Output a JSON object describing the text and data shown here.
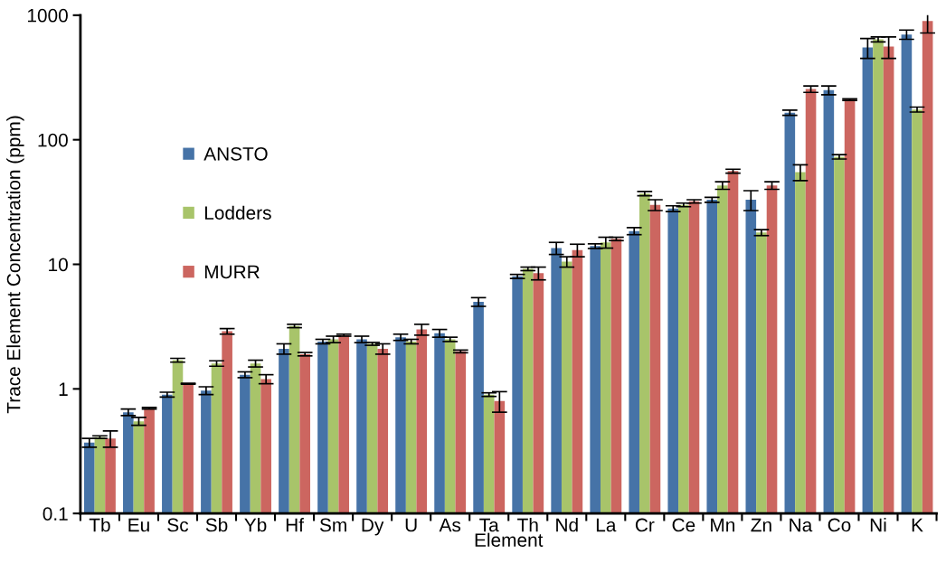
{
  "chart_data": {
    "type": "bar",
    "xlabel": "Element",
    "ylabel": "Trace Element Concentration (ppm)",
    "categories": [
      "Tb",
      "Eu",
      "Sc",
      "Sb",
      "Yb",
      "Hf",
      "Sm",
      "Dy",
      "U",
      "As",
      "Ta",
      "Th",
      "Nd",
      "La",
      "Cr",
      "Ce",
      "Mn",
      "Zn",
      "Na",
      "Co",
      "Ni",
      "K"
    ],
    "series": [
      {
        "name": "ANSTO",
        "color": "#4673a7",
        "values": [
          0.37,
          0.65,
          0.9,
          0.97,
          1.3,
          2.1,
          2.4,
          2.5,
          2.6,
          2.8,
          5.0,
          8.0,
          13.5,
          14,
          18.5,
          28,
          33,
          33,
          165,
          250,
          550,
          700
        ],
        "errors": [
          0.03,
          0.04,
          0.04,
          0.07,
          0.07,
          0.2,
          0.1,
          0.15,
          0.15,
          0.2,
          0.4,
          0.3,
          1.5,
          0.6,
          1.2,
          1.5,
          1.5,
          6,
          8,
          20,
          100,
          60
        ]
      },
      {
        "name": "Lodders",
        "color": "#a8c46a",
        "values": [
          0.41,
          0.55,
          1.7,
          1.6,
          1.6,
          3.2,
          2.5,
          2.3,
          2.4,
          2.5,
          0.9,
          9.2,
          10.5,
          15,
          37,
          30,
          43,
          18,
          55,
          73,
          640,
          175
        ],
        "errors": [
          0.01,
          0.04,
          0.06,
          0.08,
          0.1,
          0.1,
          0.15,
          0.06,
          0.1,
          0.1,
          0.03,
          0.3,
          1.0,
          1.5,
          1.5,
          1.0,
          3,
          1,
          8,
          3,
          30,
          8
        ]
      },
      {
        "name": "MURR",
        "color": "#cc6660",
        "values": [
          0.4,
          0.7,
          1.1,
          2.9,
          1.2,
          1.9,
          2.7,
          2.1,
          3.0,
          2.0,
          0.8,
          8.5,
          13,
          16,
          30,
          32,
          56,
          43,
          255,
          210,
          560,
          900
        ],
        "errors": [
          0.06,
          0.01,
          0.01,
          0.15,
          0.1,
          0.06,
          0.05,
          0.2,
          0.3,
          0.05,
          0.15,
          1.0,
          1.5,
          0.5,
          3,
          1,
          2,
          3,
          15,
          3,
          110,
          180
        ]
      }
    ],
    "ylim": [
      0.1,
      1000
    ],
    "log": "y",
    "yticks": [
      0.1,
      1,
      10,
      100,
      1000
    ],
    "grid": false,
    "legend": "left"
  }
}
